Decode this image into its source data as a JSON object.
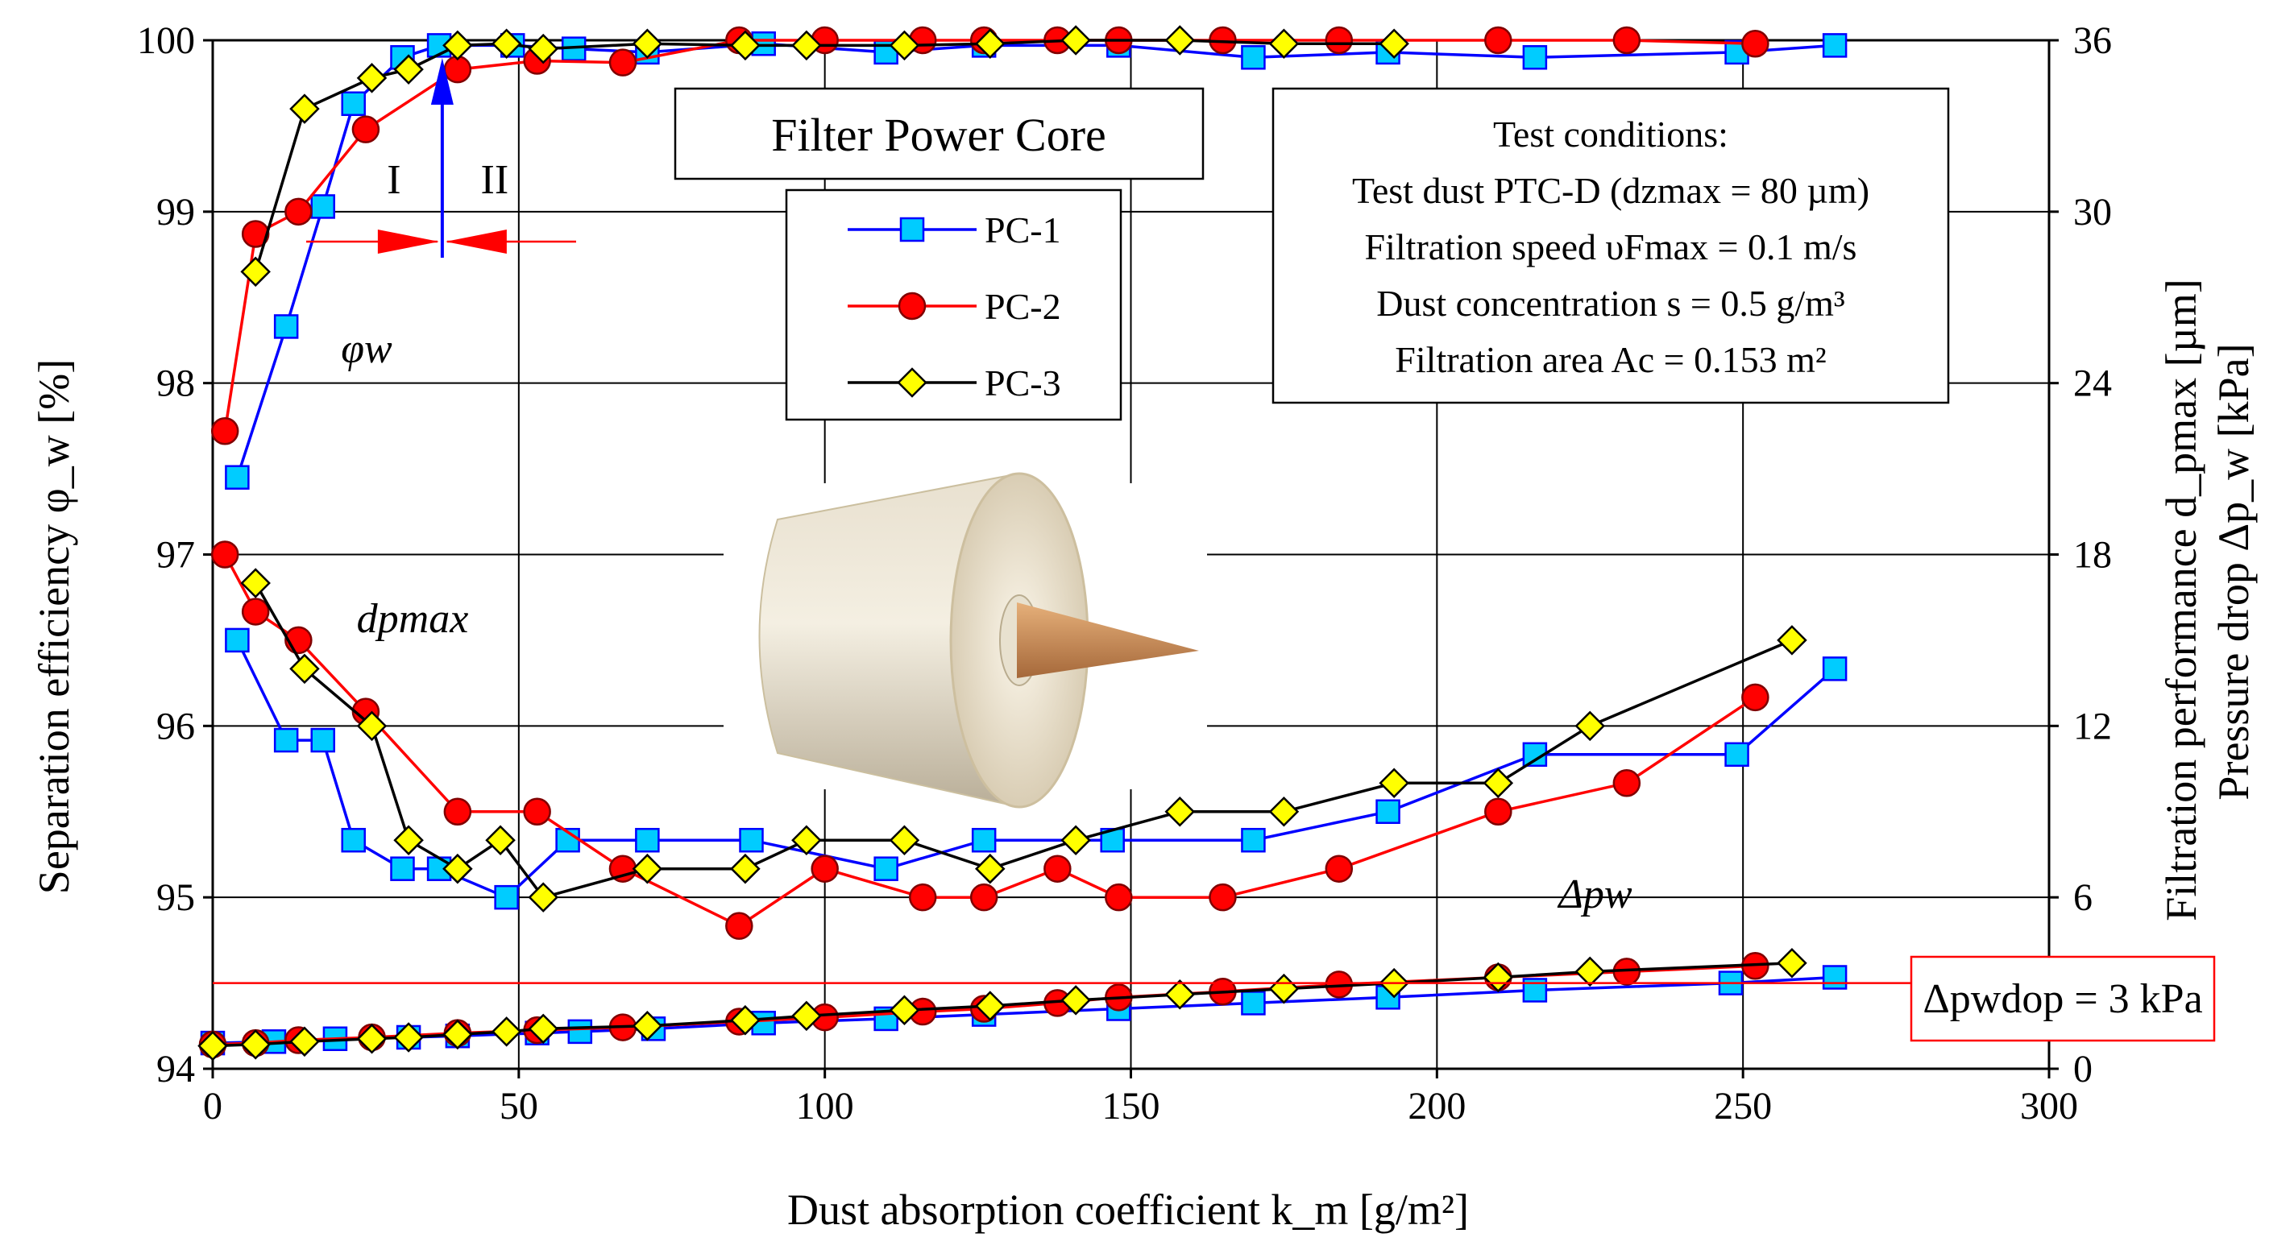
{
  "chart_data": {
    "type": "line",
    "xlabel": "Dust absorption coefficient k_m [g/m²]",
    "x_ticks": [
      "0",
      "50",
      "100",
      "150",
      "200",
      "250",
      "300"
    ],
    "xlim": [
      0,
      300
    ],
    "ylabel_left": "Separation efficiency φ_w [%]",
    "ylim_left": [
      94,
      100
    ],
    "y_ticks_left": [
      "94",
      "95",
      "96",
      "97",
      "98",
      "99",
      "100"
    ],
    "ylabel_right_1": "Filtration performance d_pmax [µm]",
    "ylabel_right_2": "Pressure drop Δp_w [kPa]",
    "ylim_right": [
      0,
      36
    ],
    "y_ticks_right": [
      "0",
      "6",
      "12",
      "18",
      "24",
      "30",
      "36"
    ],
    "grid": true,
    "legend_position": "center",
    "title_box": "Filter Power Core",
    "conditions": {
      "heading": "Test conditions:",
      "lines": [
        "Test dust PTC-D (dzmax = 80 µm)",
        "Filtration speed υFmax = 0.1 m/s",
        "Dust concentration s = 0.5 g/m³",
        "Filtration area Ac = 0.153 m²"
      ]
    },
    "annotations": {
      "phi_label": "φw",
      "dp_label": "dpmax",
      "delta_label": "Δpw",
      "region_1": "I",
      "region_2": "II",
      "limit_label": "Δpwdop = 3 kPa",
      "limit_value_kpa": 3,
      "region_boundary_x": 37.5
    },
    "series": [
      {
        "name": "PC-1",
        "color": "#0000ff",
        "marker": "square",
        "marker_fill": "#00ccff",
        "efficiency": [
          [
            4,
            97.45
          ],
          [
            12,
            98.33
          ],
          [
            18,
            99.03
          ],
          [
            23,
            99.63
          ],
          [
            31,
            99.9
          ],
          [
            37,
            99.97
          ],
          [
            49,
            99.97
          ],
          [
            59,
            99.95
          ],
          [
            71,
            99.93
          ],
          [
            90,
            99.98
          ],
          [
            110,
            99.93
          ],
          [
            126,
            99.97
          ],
          [
            148,
            99.97
          ],
          [
            170,
            99.9
          ],
          [
            192,
            99.93
          ],
          [
            216,
            99.9
          ],
          [
            249,
            99.93
          ],
          [
            265,
            99.97
          ]
        ],
        "dpmax": [
          [
            4,
            15
          ],
          [
            12,
            11.5
          ],
          [
            18,
            11.5
          ],
          [
            23,
            8
          ],
          [
            31,
            7
          ],
          [
            37,
            7
          ],
          [
            48,
            6
          ],
          [
            58,
            8
          ],
          [
            71,
            8
          ],
          [
            88,
            8
          ],
          [
            110,
            7
          ],
          [
            126,
            8
          ],
          [
            147,
            8
          ],
          [
            170,
            8
          ],
          [
            192,
            9
          ],
          [
            216,
            11
          ],
          [
            249,
            11
          ],
          [
            265,
            14
          ]
        ],
        "pressure": [
          [
            0,
            0.9
          ],
          [
            10,
            0.95
          ],
          [
            20,
            1.05
          ],
          [
            32,
            1.1
          ],
          [
            40,
            1.15
          ],
          [
            53,
            1.25
          ],
          [
            60,
            1.3
          ],
          [
            72,
            1.4
          ],
          [
            90,
            1.6
          ],
          [
            110,
            1.75
          ],
          [
            126,
            1.9
          ],
          [
            148,
            2.1
          ],
          [
            170,
            2.3
          ],
          [
            192,
            2.5
          ],
          [
            216,
            2.75
          ],
          [
            248,
            3.0
          ],
          [
            265,
            3.2
          ]
        ]
      },
      {
        "name": "PC-2",
        "color": "#ff0000",
        "marker": "circle",
        "marker_fill": "#ff0000",
        "efficiency": [
          [
            2,
            97.72
          ],
          [
            7,
            98.87
          ],
          [
            14,
            99.0
          ],
          [
            25,
            99.48
          ],
          [
            40,
            99.83
          ],
          [
            53,
            99.88
          ],
          [
            67,
            99.87
          ],
          [
            86,
            100
          ],
          [
            100,
            100
          ],
          [
            116,
            100
          ],
          [
            126,
            100
          ],
          [
            138,
            100
          ],
          [
            148,
            100
          ],
          [
            165,
            100
          ],
          [
            184,
            100
          ],
          [
            210,
            100
          ],
          [
            231,
            100
          ],
          [
            252,
            99.98
          ]
        ],
        "dpmax": [
          [
            2,
            18
          ],
          [
            7,
            16
          ],
          [
            14,
            15
          ],
          [
            25,
            12.5
          ],
          [
            40,
            9
          ],
          [
            53,
            9
          ],
          [
            67,
            7
          ],
          [
            86,
            5
          ],
          [
            100,
            7
          ],
          [
            116,
            6
          ],
          [
            126,
            6
          ],
          [
            138,
            7
          ],
          [
            148,
            6
          ],
          [
            165,
            6
          ],
          [
            184,
            7
          ],
          [
            210,
            9
          ],
          [
            231,
            10
          ],
          [
            252,
            13
          ]
        ],
        "pressure": [
          [
            0,
            0.85
          ],
          [
            7,
            0.9
          ],
          [
            14,
            1.0
          ],
          [
            26,
            1.1
          ],
          [
            40,
            1.25
          ],
          [
            53,
            1.35
          ],
          [
            67,
            1.45
          ],
          [
            86,
            1.65
          ],
          [
            100,
            1.8
          ],
          [
            116,
            2.0
          ],
          [
            126,
            2.1
          ],
          [
            138,
            2.3
          ],
          [
            148,
            2.5
          ],
          [
            165,
            2.7
          ],
          [
            184,
            2.95
          ],
          [
            210,
            3.2
          ],
          [
            231,
            3.4
          ],
          [
            252,
            3.6
          ]
        ]
      },
      {
        "name": "PC-3",
        "color": "#000000",
        "marker": "diamond",
        "marker_fill": "#ffff00",
        "efficiency": [
          [
            7,
            98.65
          ],
          [
            15,
            99.6
          ],
          [
            26,
            99.78
          ],
          [
            32,
            99.83
          ],
          [
            40,
            99.97
          ],
          [
            48,
            99.98
          ],
          [
            54,
            99.95
          ],
          [
            71,
            99.98
          ],
          [
            87,
            99.97
          ],
          [
            97,
            99.97
          ],
          [
            113,
            99.97
          ],
          [
            127,
            99.98
          ],
          [
            141,
            100
          ],
          [
            158,
            100
          ],
          [
            175,
            99.98
          ],
          [
            193,
            99.98
          ]
        ],
        "dpmax": [
          [
            7,
            17
          ],
          [
            15,
            14
          ],
          [
            26,
            12
          ],
          [
            32,
            8
          ],
          [
            40,
            7
          ],
          [
            47,
            8
          ],
          [
            54,
            6
          ],
          [
            71,
            7
          ],
          [
            87,
            7
          ],
          [
            97,
            8
          ],
          [
            113,
            8
          ],
          [
            127,
            7
          ],
          [
            141,
            8
          ],
          [
            158,
            9
          ],
          [
            175,
            9
          ],
          [
            193,
            10
          ],
          [
            210,
            10
          ],
          [
            225,
            12
          ],
          [
            258,
            15
          ]
        ],
        "pressure": [
          [
            0,
            0.8
          ],
          [
            7,
            0.85
          ],
          [
            15,
            0.95
          ],
          [
            26,
            1.05
          ],
          [
            32,
            1.1
          ],
          [
            40,
            1.2
          ],
          [
            48,
            1.3
          ],
          [
            54,
            1.4
          ],
          [
            71,
            1.5
          ],
          [
            87,
            1.7
          ],
          [
            97,
            1.85
          ],
          [
            113,
            2.05
          ],
          [
            127,
            2.2
          ],
          [
            141,
            2.4
          ],
          [
            158,
            2.6
          ],
          [
            175,
            2.8
          ],
          [
            193,
            3.0
          ],
          [
            210,
            3.2
          ],
          [
            225,
            3.4
          ],
          [
            258,
            3.7
          ]
        ]
      }
    ]
  }
}
